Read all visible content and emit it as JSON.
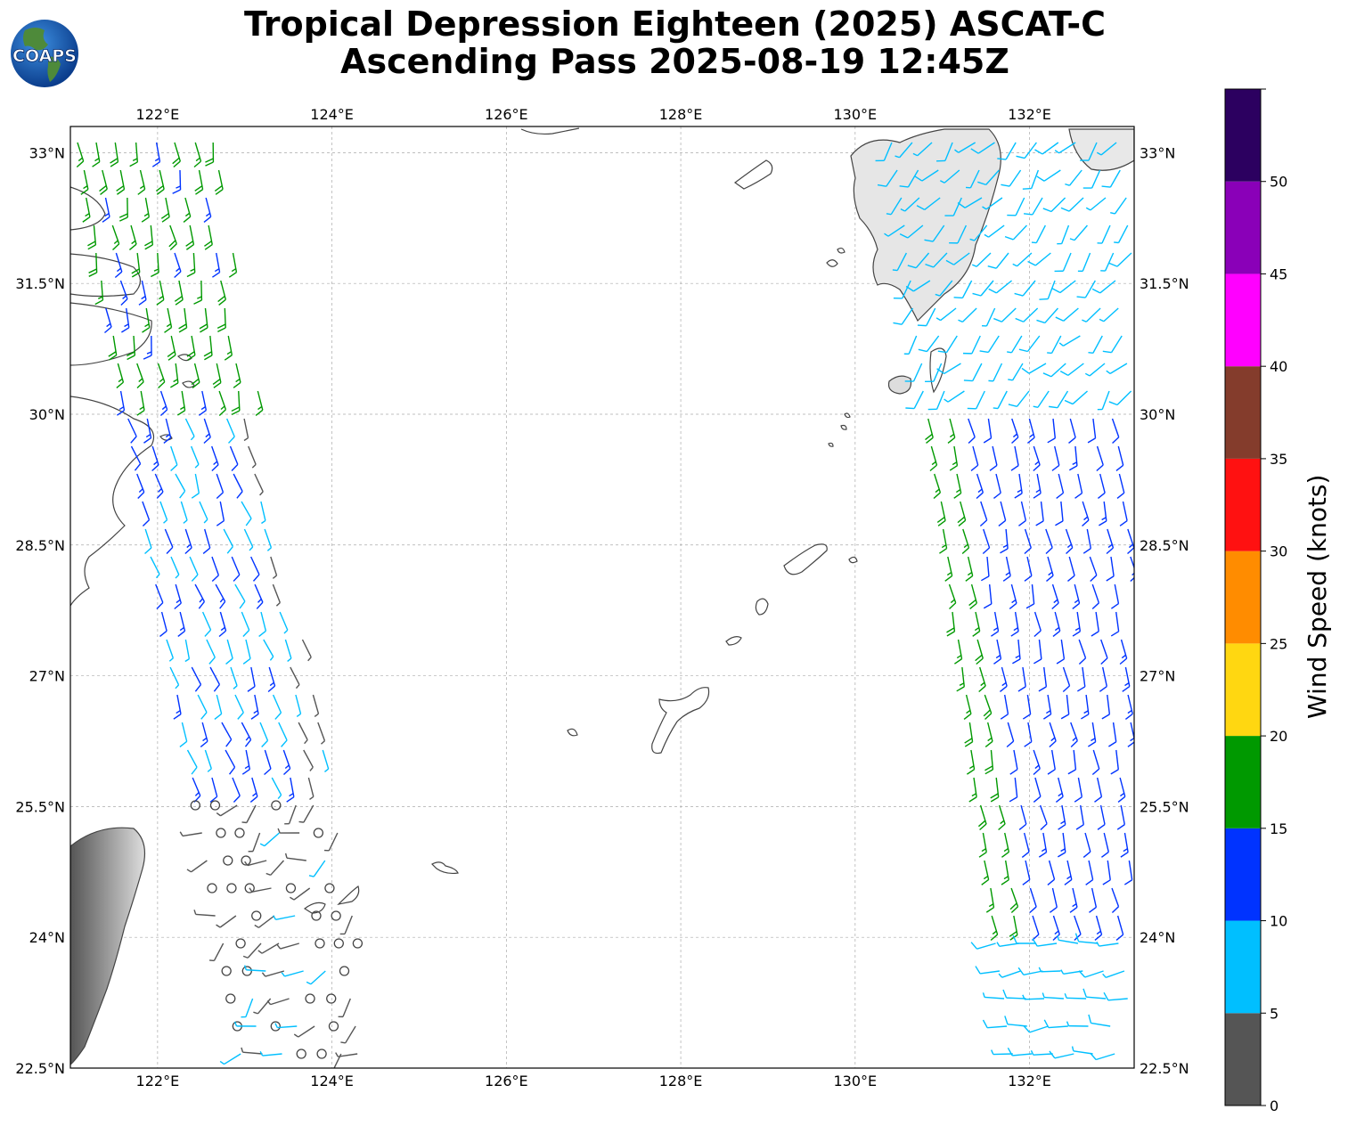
{
  "header": {
    "title_line1": "Tropical Depression Eighteen (2025) ASCAT-C",
    "title_line2": "Ascending Pass 2025-08-19 12:45Z",
    "logo_text": "COAPS"
  },
  "map": {
    "lon_range": [
      121.0,
      133.2
    ],
    "lat_range": [
      22.5,
      33.3
    ],
    "lon_ticks": [
      "122°E",
      "124°E",
      "126°E",
      "128°E",
      "130°E",
      "132°E"
    ],
    "lon_tick_values": [
      122,
      124,
      126,
      128,
      130,
      132
    ],
    "lat_ticks": [
      "22.5°N",
      "24°N",
      "25.5°N",
      "27°N",
      "28.5°N",
      "30°N",
      "31.5°N",
      "33°N"
    ],
    "lat_tick_values": [
      22.5,
      24,
      25.5,
      27,
      28.5,
      30,
      31.5,
      33
    ],
    "grid": "dashed",
    "land_color": "#ffffff",
    "coast_color": "#444444"
  },
  "colorbar": {
    "title": "Wind Speed (knots)",
    "tick_labels": [
      "0",
      "5",
      "10",
      "15",
      "20",
      "25",
      "30",
      "35",
      "40",
      "45",
      "50"
    ],
    "bins": [
      {
        "min": 0,
        "max": 5,
        "color": "#555555"
      },
      {
        "min": 5,
        "max": 10,
        "color": "#00bfff"
      },
      {
        "min": 10,
        "max": 15,
        "color": "#0033ff"
      },
      {
        "min": 15,
        "max": 20,
        "color": "#009900"
      },
      {
        "min": 20,
        "max": 25,
        "color": "#ffd711"
      },
      {
        "min": 25,
        "max": 30,
        "color": "#ff8c00"
      },
      {
        "min": 30,
        "max": 35,
        "color": "#ff1111"
      },
      {
        "min": 35,
        "max": 40,
        "color": "#843c2c"
      },
      {
        "min": 40,
        "max": 45,
        "color": "#ff00ff"
      },
      {
        "min": 45,
        "max": 50,
        "color": "#8a00b8"
      },
      {
        "min": 50,
        "max": 55,
        "color": "#2c0060"
      }
    ]
  }
}
